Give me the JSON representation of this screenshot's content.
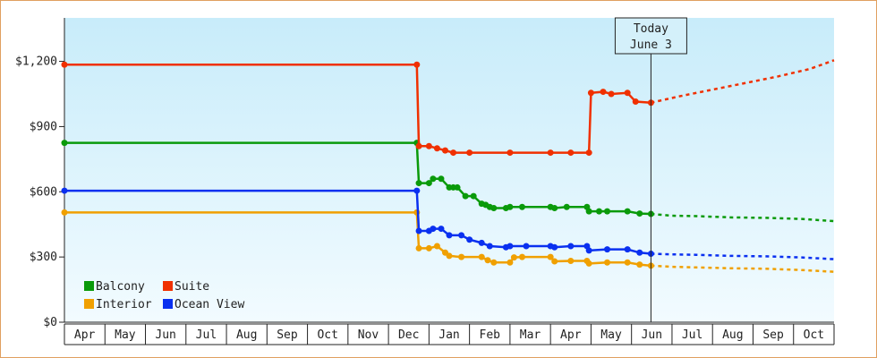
{
  "chart_data": {
    "type": "line",
    "title": "",
    "xlabel": "",
    "ylabel": "",
    "ylim": [
      0,
      1400
    ],
    "y_ticks": [
      0,
      300,
      600,
      900,
      1200
    ],
    "y_tick_labels": [
      "$0",
      "$300",
      "$600",
      "$900",
      "$1,200"
    ],
    "x_ticks": [
      "Apr",
      "May",
      "Jun",
      "Jul",
      "Aug",
      "Sep",
      "Oct",
      "Nov",
      "Dec",
      "Jan",
      "Feb",
      "Mar",
      "Apr",
      "May",
      "Jun",
      "Jul",
      "Aug",
      "Sep",
      "Oct"
    ],
    "today_marker": {
      "line1": "Today",
      "line2": "June 3",
      "x": 14.48
    },
    "background": "light-blue-gradient",
    "grid": false,
    "legend_position": "bottom-left",
    "series": [
      {
        "name": "Balcony",
        "color": "#0a9a0a",
        "data": [
          [
            0.0,
            825
          ],
          [
            8.7,
            825
          ],
          [
            8.75,
            640
          ],
          [
            9.0,
            640
          ],
          [
            9.1,
            660
          ],
          [
            9.3,
            660
          ],
          [
            9.5,
            620
          ],
          [
            9.6,
            620
          ],
          [
            9.7,
            620
          ],
          [
            9.9,
            580
          ],
          [
            10.1,
            580
          ],
          [
            10.3,
            545
          ],
          [
            10.4,
            540
          ],
          [
            10.5,
            530
          ],
          [
            10.6,
            525
          ],
          [
            10.9,
            525
          ],
          [
            11.0,
            530
          ],
          [
            11.3,
            530
          ],
          [
            12.0,
            530
          ],
          [
            12.1,
            525
          ],
          [
            12.4,
            530
          ],
          [
            12.9,
            530
          ],
          [
            12.95,
            510
          ],
          [
            13.2,
            510
          ],
          [
            13.4,
            510
          ],
          [
            13.9,
            510
          ],
          [
            14.2,
            500
          ],
          [
            14.48,
            498
          ]
        ],
        "projection": [
          [
            14.48,
            498
          ],
          [
            15.0,
            490
          ],
          [
            15.6,
            488
          ],
          [
            16.5,
            482
          ],
          [
            17.3,
            480
          ],
          [
            18.2,
            475
          ],
          [
            19.0,
            465
          ]
        ]
      },
      {
        "name": "Interior",
        "color": "#f0a000",
        "data": [
          [
            0.0,
            505
          ],
          [
            8.7,
            505
          ],
          [
            8.75,
            340
          ],
          [
            9.0,
            340
          ],
          [
            9.2,
            350
          ],
          [
            9.4,
            320
          ],
          [
            9.5,
            305
          ],
          [
            9.8,
            300
          ],
          [
            10.3,
            300
          ],
          [
            10.45,
            285
          ],
          [
            10.6,
            275
          ],
          [
            11.0,
            275
          ],
          [
            11.1,
            298
          ],
          [
            11.3,
            300
          ],
          [
            12.0,
            300
          ],
          [
            12.1,
            280
          ],
          [
            12.5,
            282
          ],
          [
            12.9,
            282
          ],
          [
            12.95,
            270
          ],
          [
            13.4,
            275
          ],
          [
            13.9,
            275
          ],
          [
            14.2,
            265
          ],
          [
            14.48,
            260
          ]
        ],
        "projection": [
          [
            14.48,
            260
          ],
          [
            15.0,
            255
          ],
          [
            15.6,
            252
          ],
          [
            16.5,
            248
          ],
          [
            17.3,
            246
          ],
          [
            18.2,
            240
          ],
          [
            19.0,
            232
          ]
        ]
      },
      {
        "name": "Suite",
        "color": "#f03000",
        "data": [
          [
            0.0,
            1185
          ],
          [
            8.7,
            1185
          ],
          [
            8.75,
            810
          ],
          [
            9.0,
            810
          ],
          [
            9.2,
            800
          ],
          [
            9.4,
            790
          ],
          [
            9.6,
            780
          ],
          [
            10.0,
            780
          ],
          [
            11.0,
            780
          ],
          [
            12.0,
            780
          ],
          [
            12.5,
            780
          ],
          [
            12.95,
            780
          ],
          [
            13.0,
            1055
          ],
          [
            13.3,
            1060
          ],
          [
            13.5,
            1050
          ],
          [
            13.9,
            1055
          ],
          [
            14.1,
            1015
          ],
          [
            14.48,
            1010
          ]
        ],
        "projection": [
          [
            14.48,
            1010
          ],
          [
            15.2,
            1040
          ],
          [
            16.0,
            1070
          ],
          [
            16.8,
            1100
          ],
          [
            17.6,
            1130
          ],
          [
            18.4,
            1165
          ],
          [
            19.0,
            1205
          ]
        ]
      },
      {
        "name": "Ocean View",
        "color": "#0a30f0",
        "data": [
          [
            0.0,
            605
          ],
          [
            8.7,
            605
          ],
          [
            8.75,
            420
          ],
          [
            9.0,
            420
          ],
          [
            9.1,
            430
          ],
          [
            9.3,
            430
          ],
          [
            9.5,
            400
          ],
          [
            9.8,
            400
          ],
          [
            10.0,
            380
          ],
          [
            10.3,
            365
          ],
          [
            10.5,
            350
          ],
          [
            10.9,
            345
          ],
          [
            11.0,
            350
          ],
          [
            11.4,
            350
          ],
          [
            12.0,
            350
          ],
          [
            12.1,
            345
          ],
          [
            12.5,
            350
          ],
          [
            12.9,
            350
          ],
          [
            12.95,
            330
          ],
          [
            13.4,
            335
          ],
          [
            13.9,
            335
          ],
          [
            14.2,
            320
          ],
          [
            14.48,
            315
          ]
        ],
        "projection": [
          [
            14.48,
            315
          ],
          [
            15.0,
            312
          ],
          [
            15.6,
            310
          ],
          [
            16.5,
            305
          ],
          [
            17.3,
            303
          ],
          [
            18.2,
            298
          ],
          [
            19.0,
            290
          ]
        ]
      }
    ]
  }
}
